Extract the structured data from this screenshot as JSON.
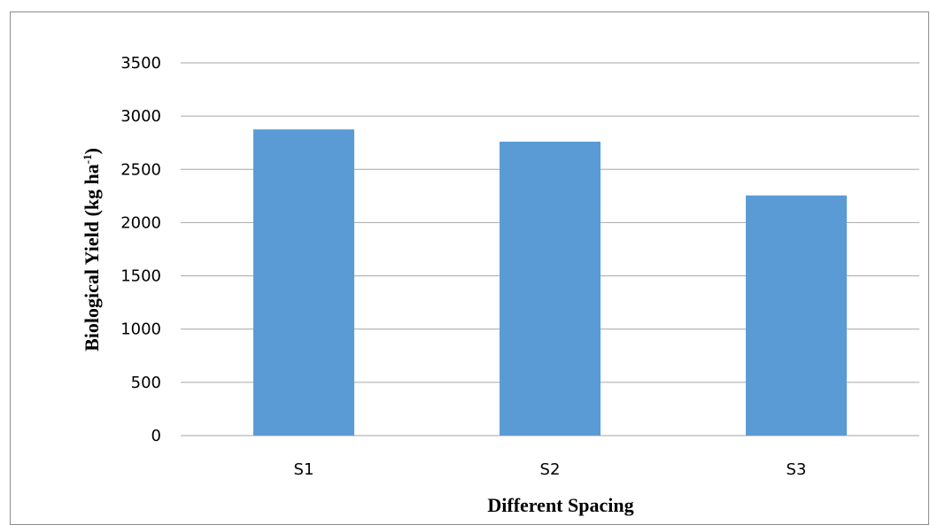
{
  "chart_data": {
    "type": "bar",
    "categories": [
      "S1",
      "S2",
      "S3"
    ],
    "values": [
      2875,
      2760,
      2255
    ],
    "xlabel": "Different Spacing",
    "ylabel": {
      "prefix": "Biological Yield (kg ha",
      "sup": "-1",
      "suffix": ")"
    },
    "ylim": [
      0,
      3500
    ],
    "yticks": [
      "0",
      "500",
      "1000",
      "1500",
      "2000",
      "2500",
      "3000",
      "3500"
    ],
    "grid": true,
    "legend": "none",
    "bar_color": "#5b9bd5",
    "grid_color": "#a6a6a6"
  }
}
